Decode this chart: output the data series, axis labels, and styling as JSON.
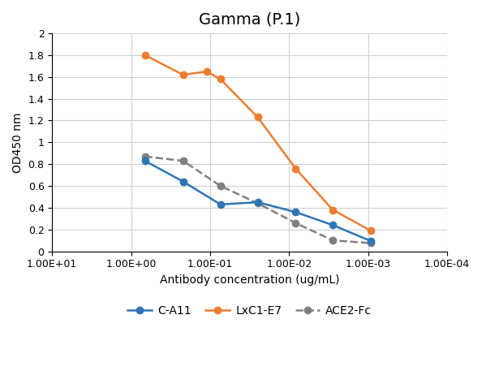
{
  "title": "Gamma (P.1)",
  "xlabel": "Antibody concentration (ug/mL)",
  "ylabel": "OD450 nm",
  "ylim": [
    0,
    2.0
  ],
  "yticks": [
    0,
    0.2,
    0.4,
    0.6,
    0.8,
    1.0,
    1.2,
    1.4,
    1.6,
    1.8,
    2.0
  ],
  "xlim_log": [
    0.0001,
    10.0
  ],
  "xtick_vals": [
    10.0,
    1.0,
    0.1,
    0.01,
    0.001,
    0.0001
  ],
  "xtick_labels": [
    "1.00E+01",
    "1.00E+00",
    "1.00E-01",
    "1.00E-02",
    "1.00E-03",
    "1.00E-04"
  ],
  "series": {
    "C-A11": {
      "x": [
        0.67,
        0.22,
        0.074,
        0.025,
        0.0083,
        0.0028,
        0.00093
      ],
      "y": [
        0.83,
        0.64,
        0.43,
        0.45,
        0.36,
        0.24,
        0.095
      ],
      "color": "#2E75B6",
      "marker": "o",
      "linestyle": "-",
      "linewidth": 1.8,
      "markersize": 6,
      "label": "C-A11",
      "zorder": 3
    },
    "LxC1-E7": {
      "x": [
        0.67,
        0.22,
        0.11,
        0.074,
        0.025,
        0.0083,
        0.0028,
        0.00093
      ],
      "y": [
        1.8,
        1.62,
        1.65,
        1.58,
        1.23,
        0.76,
        0.38,
        0.19
      ],
      "color": "#ED7D31",
      "marker": "o",
      "linestyle": "-",
      "linewidth": 1.8,
      "markersize": 6,
      "label": "LxC1-E7",
      "zorder": 3
    },
    "ACE2-Fc": {
      "x": [
        0.67,
        0.22,
        0.074,
        0.025,
        0.0083,
        0.0028,
        0.00093
      ],
      "y": [
        0.87,
        0.83,
        0.6,
        0.44,
        0.26,
        0.1,
        0.075
      ],
      "color": "#808080",
      "marker": "o",
      "linestyle": "--",
      "linewidth": 1.8,
      "markersize": 6,
      "label": "ACE2-Fc",
      "zorder": 2
    }
  },
  "legend_order": [
    "C-A11",
    "LxC1-E7",
    "ACE2-Fc"
  ],
  "background_color": "#FFFFFF",
  "grid_color": "#D0D0D0",
  "title_fontsize": 14,
  "axis_label_fontsize": 10,
  "tick_fontsize": 9,
  "legend_fontsize": 10
}
